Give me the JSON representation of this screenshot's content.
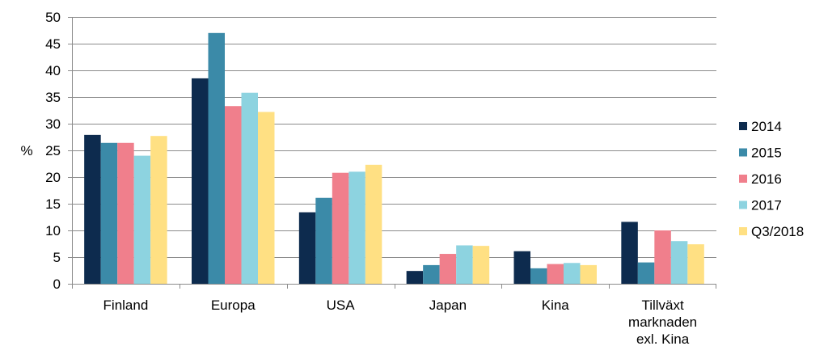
{
  "chart_data": {
    "type": "bar",
    "title": "",
    "xlabel": "",
    "ylabel": "%",
    "ylim": [
      0,
      50
    ],
    "yticks": [
      0,
      5,
      10,
      15,
      20,
      25,
      30,
      35,
      40,
      45,
      50
    ],
    "grid": true,
    "legend_position": "right",
    "categories": [
      [
        "Finland"
      ],
      [
        "Europa"
      ],
      [
        "USA"
      ],
      [
        "Japan"
      ],
      [
        "Kina"
      ],
      [
        "Tillväxt",
        "marknaden",
        "exl. Kina"
      ]
    ],
    "series": [
      {
        "name": "2014",
        "color": "#0d2b4e",
        "values": [
          27.9,
          38.5,
          13.4,
          2.4,
          6.1,
          11.6
        ]
      },
      {
        "name": "2015",
        "color": "#3b8aa8",
        "values": [
          26.4,
          47.0,
          16.1,
          3.5,
          2.9,
          4.0
        ]
      },
      {
        "name": "2016",
        "color": "#f07f8c",
        "values": [
          26.4,
          33.3,
          20.8,
          5.6,
          3.7,
          10.0
        ]
      },
      {
        "name": "2017",
        "color": "#8dd3e0",
        "values": [
          24.0,
          35.8,
          21.0,
          7.2,
          3.9,
          8.0
        ]
      },
      {
        "name": "Q3/2018",
        "color": "#ffe083",
        "values": [
          27.7,
          32.2,
          22.3,
          7.1,
          3.5,
          7.4
        ]
      }
    ]
  }
}
